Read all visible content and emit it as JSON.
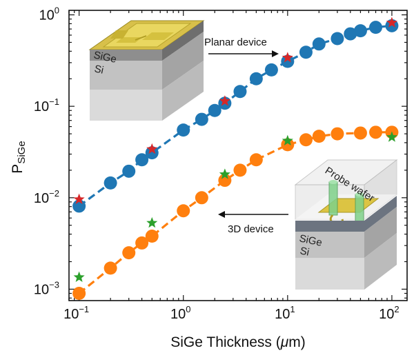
{
  "chart_data": {
    "type": "scatter",
    "xscale": "log",
    "yscale": "log",
    "xlim": [
      0.08,
      140
    ],
    "ylim": [
      0.00075,
      1.12
    ],
    "xlabel_prefix": "SiGe Thickness (",
    "xlabel_mu": "μ",
    "xlabel_suffix": "m)",
    "ylabel_main": "P",
    "ylabel_sub": "SiGe",
    "x_ticks": [
      {
        "value": 0.1,
        "base": "10",
        "exp": "−1"
      },
      {
        "value": 1,
        "base": "10",
        "exp": "0"
      },
      {
        "value": 10,
        "base": "10",
        "exp": "1"
      },
      {
        "value": 100,
        "base": "10",
        "exp": "2"
      }
    ],
    "y_ticks": [
      {
        "value": 0.001,
        "base": "10",
        "exp": "−3"
      },
      {
        "value": 0.01,
        "base": "10",
        "exp": "−2"
      },
      {
        "value": 0.1,
        "base": "10",
        "exp": "−1"
      },
      {
        "value": 1,
        "base": "10",
        "exp": "0"
      }
    ],
    "series": [
      {
        "color": "#1f77b4",
        "marker": "circle",
        "line": "dashed",
        "x": [
          0.1,
          0.2,
          0.3,
          0.4,
          0.5,
          1,
          1.5,
          2,
          2.5,
          3.5,
          5,
          7,
          10,
          15,
          20,
          30,
          40,
          50,
          70,
          100
        ],
        "y": [
          0.0081,
          0.0145,
          0.0195,
          0.026,
          0.031,
          0.055,
          0.072,
          0.09,
          0.108,
          0.145,
          0.2,
          0.25,
          0.31,
          0.39,
          0.48,
          0.55,
          0.62,
          0.67,
          0.73,
          0.76
        ]
      },
      {
        "color": "#d62728",
        "marker": "star",
        "x": [
          0.1,
          0.5,
          2.5,
          10,
          100
        ],
        "y": [
          0.0096,
          0.034,
          0.114,
          0.34,
          0.82
        ]
      },
      {
        "color": "#ff7f0e",
        "marker": "circle",
        "line": "dashed",
        "x": [
          0.1,
          0.2,
          0.3,
          0.4,
          0.5,
          1,
          1.5,
          2.5,
          3.5,
          5,
          10,
          15,
          20,
          30,
          50,
          70,
          100
        ],
        "y": [
          0.0009,
          0.0017,
          0.0025,
          0.0032,
          0.0038,
          0.0072,
          0.01,
          0.0155,
          0.02,
          0.026,
          0.038,
          0.043,
          0.047,
          0.05,
          0.051,
          0.052,
          0.052
        ]
      },
      {
        "color": "#2ca02c",
        "marker": "star",
        "x": [
          0.1,
          0.5,
          2.5,
          10,
          100
        ],
        "y": [
          0.00135,
          0.0053,
          0.018,
          0.042,
          0.046
        ]
      }
    ],
    "annotations": {
      "planar": "Planar device",
      "device3d": "3D device"
    },
    "inset_planar": {
      "layer1": "SiGe",
      "layer2": "Si"
    },
    "inset_3d": {
      "probe": "Probe wafer",
      "layer1": "SiGe",
      "layer2": "Si"
    }
  }
}
